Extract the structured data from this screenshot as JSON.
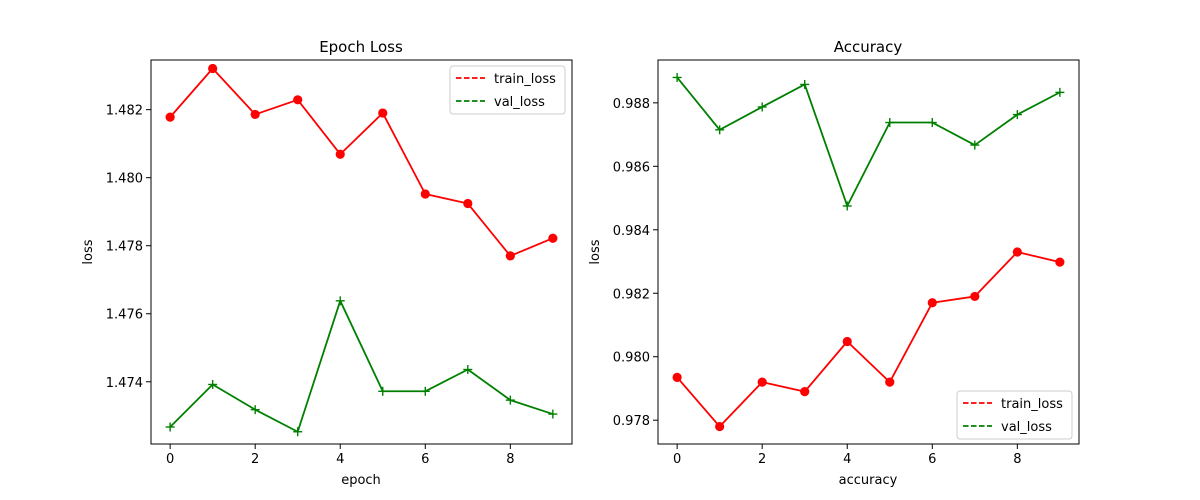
{
  "chart_data": [
    {
      "type": "line",
      "title": "Epoch Loss",
      "xlabel": "epoch",
      "ylabel": "loss",
      "xlim": [
        -0.45,
        9.45
      ],
      "ylim": [
        1.47217,
        1.48346
      ],
      "x_ticks": [
        0,
        2,
        4,
        6,
        8
      ],
      "y_ticks": [
        1.474,
        1.476,
        1.478,
        1.48,
        1.482
      ],
      "legend_position": "upper right",
      "legend": [
        {
          "label": "train_loss",
          "color": "#ff0000",
          "line_style": "dashed"
        },
        {
          "label": "val_loss",
          "color": "#008000",
          "line_style": "dashed"
        }
      ],
      "series": [
        {
          "color": "#ff0000",
          "marker": "circle",
          "x": [
            0,
            1,
            2,
            3,
            4,
            5,
            6,
            7,
            8,
            9
          ],
          "y": [
            1.48178,
            1.48321,
            1.48186,
            1.48229,
            1.48069,
            1.4819,
            1.47952,
            1.47924,
            1.4777,
            1.47822
          ]
        },
        {
          "color": "#008000",
          "marker": "plus",
          "x": [
            0,
            1,
            2,
            3,
            4,
            5,
            6,
            7,
            8,
            9
          ],
          "y": [
            1.47267,
            1.47392,
            1.47318,
            1.47253,
            1.47638,
            1.47372,
            1.47372,
            1.47436,
            1.47346,
            1.47305
          ]
        }
      ]
    },
    {
      "type": "line",
      "title": "Accuracy",
      "xlabel": "accuracy",
      "ylabel": "loss",
      "xlim": [
        -0.45,
        9.45
      ],
      "ylim": [
        0.97725,
        0.98935
      ],
      "x_ticks": [
        0,
        2,
        4,
        6,
        8
      ],
      "y_ticks": [
        0.978,
        0.98,
        0.982,
        0.984,
        0.986,
        0.988
      ],
      "legend_position": "lower right",
      "legend": [
        {
          "label": "train_loss",
          "color": "#ff0000",
          "line_style": "dashed"
        },
        {
          "label": "val_loss",
          "color": "#008000",
          "line_style": "dashed"
        }
      ],
      "series": [
        {
          "color": "#ff0000",
          "marker": "circle",
          "x": [
            0,
            1,
            2,
            3,
            4,
            5,
            6,
            7,
            8,
            9
          ],
          "y": [
            0.97935,
            0.9778,
            0.9792,
            0.9789,
            0.98048,
            0.9792,
            0.9817,
            0.9819,
            0.9833,
            0.98298
          ]
        },
        {
          "color": "#008000",
          "marker": "plus",
          "x": [
            0,
            1,
            2,
            3,
            4,
            5,
            6,
            7,
            8,
            9
          ],
          "y": [
            0.9888,
            0.98715,
            0.98787,
            0.98858,
            0.98475,
            0.98738,
            0.98738,
            0.98667,
            0.98763,
            0.98833
          ]
        }
      ]
    }
  ]
}
